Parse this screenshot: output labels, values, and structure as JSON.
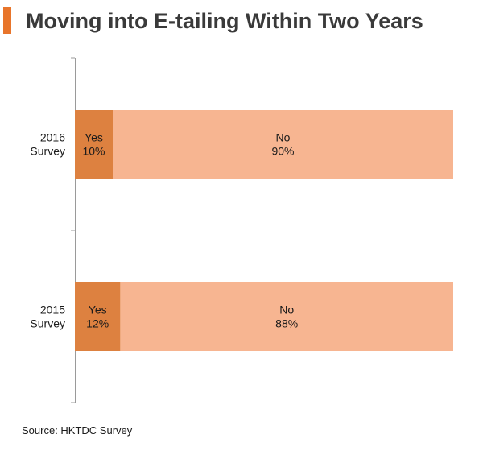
{
  "title": "Moving into E-tailing Within Two Years",
  "source": "Source: HKTDC Survey",
  "colors": {
    "accent": "#e8752b",
    "yes": "#dd8140",
    "no": "#f7b591",
    "axis": "#9a9a9a",
    "text": "#1a1a1a"
  },
  "chart_data": {
    "type": "bar",
    "orientation": "horizontal",
    "stacked": true,
    "percent": true,
    "categories": [
      [
        "2016",
        "Survey"
      ],
      [
        "2015",
        "Survey"
      ]
    ],
    "series": [
      {
        "name": "Yes",
        "values": [
          10,
          12
        ]
      },
      {
        "name": "No",
        "values": [
          90,
          88
        ]
      }
    ],
    "data_labels": [
      [
        [
          "Yes",
          "10%"
        ],
        [
          "No",
          "90%"
        ]
      ],
      [
        [
          "Yes",
          "12%"
        ],
        [
          "No",
          "88%"
        ]
      ]
    ],
    "xlim": [
      0,
      100
    ],
    "grid": false,
    "legend": "none"
  }
}
